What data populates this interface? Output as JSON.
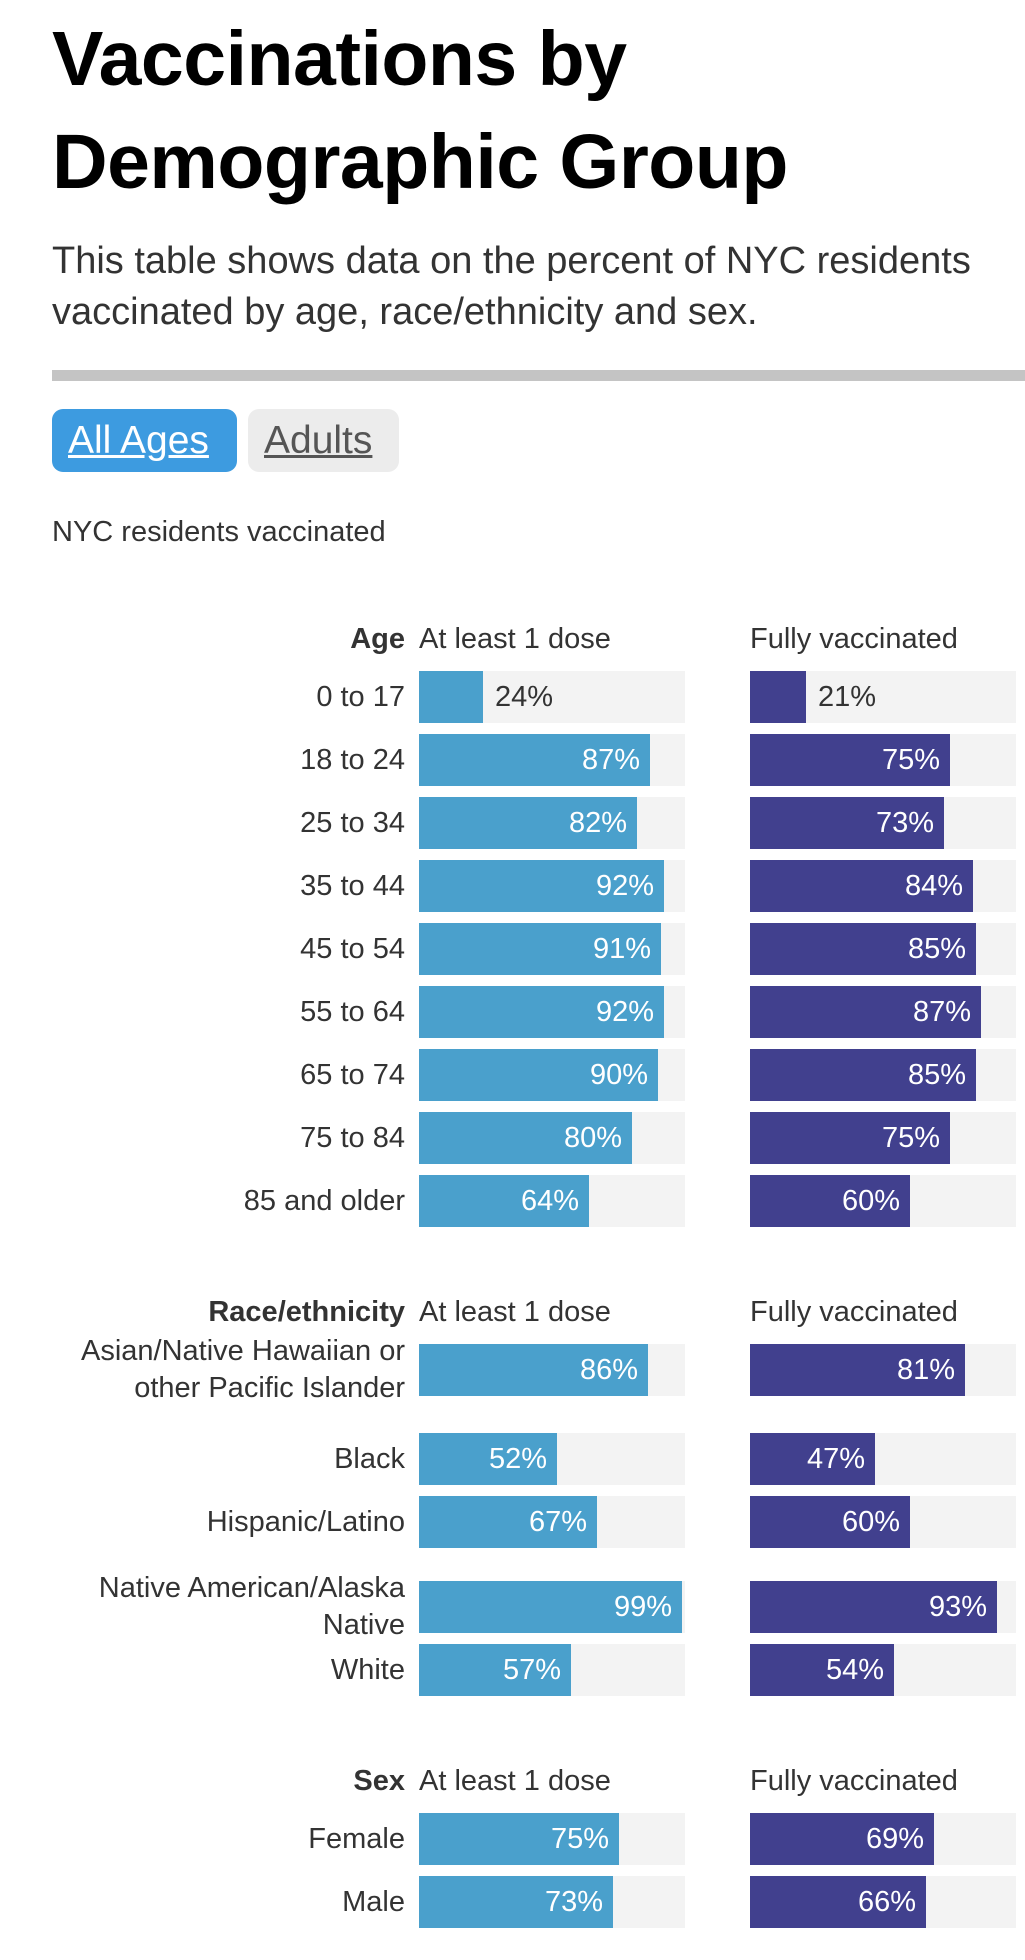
{
  "title": "Vaccinations by Demographic Group",
  "subtitle": "This table shows data on the percent of NYC residents vaccinated by age, race/ethnicity and sex.",
  "toggle": {
    "options": [
      "All Ages",
      "Adults"
    ],
    "selected": "All Ages"
  },
  "caption": "NYC residents vaccinated",
  "colors": {
    "at_least_one_dose": "#4aa0cc",
    "fully_vaccinated": "#41408e",
    "track": "#f3f3f3",
    "active_button": "#3d9be0"
  },
  "chart_data": {
    "type": "bar",
    "orientation": "horizontal",
    "xlim": [
      0,
      100
    ],
    "value_suffix": "%",
    "series_names": [
      "At least 1 dose",
      "Fully vaccinated"
    ],
    "sections": [
      {
        "title": "Age",
        "rows": [
          {
            "label": "0 to 17",
            "at_least_one_dose": 24,
            "fully_vaccinated": 21
          },
          {
            "label": "18 to 24",
            "at_least_one_dose": 87,
            "fully_vaccinated": 75
          },
          {
            "label": "25 to 34",
            "at_least_one_dose": 82,
            "fully_vaccinated": 73
          },
          {
            "label": "35 to 44",
            "at_least_one_dose": 92,
            "fully_vaccinated": 84
          },
          {
            "label": "45 to 54",
            "at_least_one_dose": 91,
            "fully_vaccinated": 85
          },
          {
            "label": "55 to 64",
            "at_least_one_dose": 92,
            "fully_vaccinated": 87
          },
          {
            "label": "65 to 74",
            "at_least_one_dose": 90,
            "fully_vaccinated": 85
          },
          {
            "label": "75 to 84",
            "at_least_one_dose": 80,
            "fully_vaccinated": 75
          },
          {
            "label": "85 and older",
            "at_least_one_dose": 64,
            "fully_vaccinated": 60
          }
        ]
      },
      {
        "title": "Race/ethnicity",
        "rows": [
          {
            "label": "Asian/Native Hawaiian or other Pacific Islander",
            "at_least_one_dose": 86,
            "fully_vaccinated": 81
          },
          {
            "label": "Black",
            "at_least_one_dose": 52,
            "fully_vaccinated": 47
          },
          {
            "label": "Hispanic/Latino",
            "at_least_one_dose": 67,
            "fully_vaccinated": 60
          },
          {
            "label": "Native American/Alaska Native",
            "at_least_one_dose": 99,
            "fully_vaccinated": 93
          },
          {
            "label": "White",
            "at_least_one_dose": 57,
            "fully_vaccinated": 54
          }
        ]
      },
      {
        "title": "Sex",
        "rows": [
          {
            "label": "Female",
            "at_least_one_dose": 75,
            "fully_vaccinated": 69
          },
          {
            "label": "Male",
            "at_least_one_dose": 73,
            "fully_vaccinated": 66
          }
        ]
      }
    ]
  }
}
